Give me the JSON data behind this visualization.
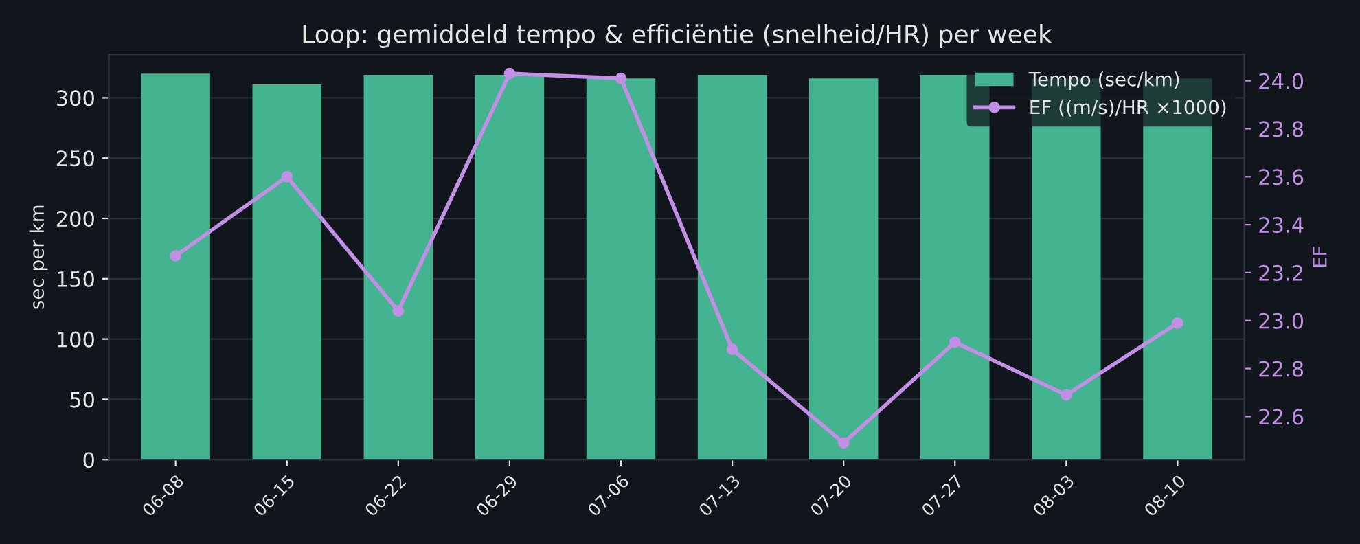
{
  "chart_data": {
    "type": "bar",
    "title": "Loop: gemiddeld tempo & efficiëntie (snelheid/HR) per week",
    "ylabel": "sec per km",
    "y2label": "EF",
    "categories": [
      "06-08",
      "06-15",
      "06-22",
      "06-29",
      "07-06",
      "07-13",
      "07-20",
      "07-27",
      "08-03",
      "08-10"
    ],
    "series": [
      {
        "name": "Tempo (sec/km)",
        "color": "#43b48f",
        "values": [
          320,
          311,
          319,
          319,
          316,
          319,
          316,
          319,
          316,
          316
        ]
      },
      {
        "name": "EF ((m/s)/HR ×1000)",
        "type": "line",
        "axis": "y2",
        "color": "#c38fe6",
        "marker": "circle",
        "values": [
          23.27,
          23.6,
          23.04,
          24.03,
          24.01,
          22.88,
          22.49,
          22.91,
          22.69,
          22.99
        ]
      }
    ],
    "ylim": [
      0,
      336
    ],
    "yticks": [
      0,
      50,
      100,
      150,
      200,
      250,
      300
    ],
    "y2lim": [
      22.42,
      24.11
    ],
    "y2ticks": [
      22.6,
      22.8,
      {
        "value": 23,
        "label": "23.0"
      },
      23.2,
      23.4,
      23.6,
      23.8,
      {
        "value": 24,
        "label": "24.0"
      }
    ],
    "grid": "y",
    "legend": "top right"
  }
}
